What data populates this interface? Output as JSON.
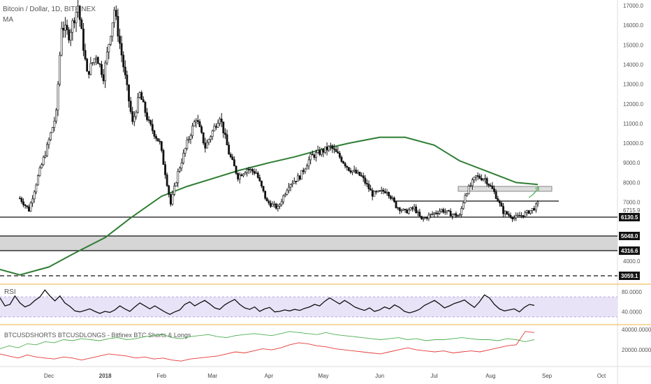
{
  "header": {
    "title": "Bitcoin / Dollar, 1D, BITFINEX",
    "indicator": "MA"
  },
  "rsi_panel": {
    "label": "RSI"
  },
  "shorts_panel": {
    "label": "BTCUSDSHORTS BTCUSDLONGS - Bitfinex BTC Shorts & Longs"
  },
  "colors": {
    "ma": "#2e7d32",
    "price": "#111111",
    "rsi": "#111111",
    "rsi_band": "#e9e3f8",
    "panel_border": "#f2b341",
    "longs": "#4caf50",
    "shorts": "#e53935",
    "arrow": "#4caf50",
    "zone": "#cccccc"
  },
  "chart_data": [
    {
      "type": "candlestick",
      "title": "Bitcoin / Dollar, 1D, BITFINEX",
      "x_ticks": [
        "Dec",
        "2018",
        "Feb",
        "Mar",
        "Apr",
        "May",
        "Jun",
        "Jul",
        "Aug",
        "Sep",
        "Oct"
      ],
      "y_ticks": [
        "17000.0",
        "16000.0",
        "15000.0",
        "14000.0",
        "13000.0",
        "12000.0",
        "11000.0",
        "10000.0",
        "9000.0",
        "8000.0",
        "7000.0",
        "4000.0"
      ],
      "ylim": [
        2500,
        17500
      ],
      "price_path": [
        [
          "Nov 15",
          7200
        ],
        [
          "Nov 20",
          6600
        ],
        [
          "Nov 25",
          8300
        ],
        [
          "Nov 30",
          9800
        ],
        [
          "Dec 5",
          11500
        ],
        [
          "Dec 8",
          16000
        ],
        [
          "Dec 12",
          15500
        ],
        [
          "Dec 17",
          17000
        ],
        [
          "Dec 22",
          13500
        ],
        [
          "Dec 27",
          14500
        ],
        [
          "Dec 31",
          13400
        ],
        [
          "Jan 6",
          16800
        ],
        [
          "Jan 10",
          14500
        ],
        [
          "Jan 16",
          11000
        ],
        [
          "Jan 20",
          12500
        ],
        [
          "Jan 25",
          11000
        ],
        [
          "Jan 31",
          10000
        ],
        [
          "Feb 3",
          8500
        ],
        [
          "Feb 6",
          6900
        ],
        [
          "Feb 10",
          8500
        ],
        [
          "Feb 15",
          10000
        ],
        [
          "Feb 20",
          11300
        ],
        [
          "Feb 25",
          9800
        ],
        [
          "Mar 5",
          11400
        ],
        [
          "Mar 10",
          9500
        ],
        [
          "Mar 15",
          8300
        ],
        [
          "Mar 20",
          8700
        ],
        [
          "Mar 25",
          8500
        ],
        [
          "Mar 31",
          7000
        ],
        [
          "Apr 6",
          6700
        ],
        [
          "Apr 12",
          7900
        ],
        [
          "Apr 18",
          8300
        ],
        [
          "Apr 24",
          9300
        ],
        [
          "May 5",
          9800
        ],
        [
          "May 10",
          9300
        ],
        [
          "May 15",
          8700
        ],
        [
          "May 22",
          8300
        ],
        [
          "May 28",
          7400
        ],
        [
          "Jun 5",
          7600
        ],
        [
          "Jun 10",
          6800
        ],
        [
          "Jun 15",
          6500
        ],
        [
          "Jun 20",
          6700
        ],
        [
          "Jun 24",
          6100
        ],
        [
          "Jun 30",
          6400
        ],
        [
          "Jul 5",
          6600
        ],
        [
          "Jul 10",
          6400
        ],
        [
          "Jul 15",
          6300
        ],
        [
          "Jul 18",
          7400
        ],
        [
          "Jul 24",
          8300
        ],
        [
          "Jul 29",
          8200
        ],
        [
          "Aug 3",
          7500
        ],
        [
          "Aug 8",
          6500
        ],
        [
          "Aug 14",
          6200
        ],
        [
          "Aug 20",
          6400
        ],
        [
          "Aug 25",
          6700
        ],
        [
          "Aug 27",
          6900
        ]
      ],
      "ma_path": [
        [
          "Nov 15",
          3300
        ],
        [
          "Dec 1",
          3700
        ],
        [
          "Dec 15",
          4400
        ],
        [
          "Jan 1",
          5200
        ],
        [
          "Jan 15",
          6200
        ],
        [
          "Feb 1",
          7300
        ],
        [
          "Feb 15",
          7800
        ],
        [
          "Mar 1",
          8200
        ],
        [
          "Mar 15",
          8600
        ],
        [
          "Apr 1",
          9000
        ],
        [
          "Apr 15",
          9300
        ],
        [
          "May 1",
          9700
        ],
        [
          "May 15",
          10000
        ],
        [
          "Jun 1",
          10300
        ],
        [
          "Jun 15",
          10300
        ],
        [
          "Jul 1",
          9900
        ],
        [
          "Jul 15",
          9100
        ],
        [
          "Aug 1",
          8500
        ],
        [
          "Aug 15",
          8000
        ],
        [
          "Aug 27",
          7900
        ]
      ],
      "levels": [
        {
          "label": "6130.5",
          "value": 6130.5,
          "style": "solid"
        },
        {
          "label": "5048.0",
          "value": 5048.0,
          "style": "solid"
        },
        {
          "label": "4316.6",
          "value": 4316.6,
          "style": "solid"
        },
        {
          "label": "3059.1",
          "value": 3059.1,
          "style": "dashed"
        }
      ],
      "support_zone": [
        4316.6,
        5048.0
      ],
      "resistance_line": 6900,
      "resistance_zone": [
        7400,
        7700
      ],
      "current_price": "6715.9"
    },
    {
      "type": "line",
      "title": "RSI",
      "y_ticks": [
        "80.0000",
        "40.0000"
      ],
      "band": [
        30,
        70
      ],
      "ylim": [
        20,
        90
      ],
      "series": [
        {
          "values": [
            68,
            52,
            55,
            72,
            58,
            50,
            54,
            63,
            70,
            84,
            72,
            62,
            72,
            58,
            51,
            42,
            40,
            43,
            46,
            41,
            37,
            41,
            39,
            44,
            52,
            46,
            41,
            50,
            58,
            52,
            46,
            52,
            46,
            40,
            35,
            40,
            44,
            55,
            60,
            52,
            58,
            63,
            56,
            48,
            45,
            54,
            60,
            65,
            55,
            48,
            45,
            50,
            41,
            46,
            49,
            40,
            41,
            44,
            42,
            45,
            43,
            47,
            50,
            55,
            52,
            61,
            68,
            62,
            56,
            63,
            57,
            50,
            46,
            43,
            48,
            41,
            44,
            50,
            46,
            54,
            49,
            41,
            38,
            41,
            45,
            53,
            58,
            63,
            56,
            48,
            52,
            57,
            60,
            64,
            56,
            49,
            60,
            74,
            68,
            55,
            46,
            42,
            44,
            46,
            40,
            49,
            55,
            53
          ]
        }
      ]
    },
    {
      "type": "line",
      "title": "BTCUSDSHORTS BTCUSDLONGS - Bitfinex BTC Shorts & Longs",
      "y_ticks": [
        "40000.0000",
        "20000.0000"
      ],
      "ylim": [
        5000,
        42000
      ],
      "series": [
        {
          "values": [
            21000,
            24000,
            22000,
            26000,
            25000,
            28000,
            27000,
            30000,
            29000,
            31000,
            30000,
            29000,
            31000,
            32000,
            30000,
            31000,
            33000,
            34000,
            35000,
            32000,
            31000,
            33000,
            34000,
            35000,
            33000,
            32000,
            34000,
            35000,
            36000,
            35000,
            34000,
            36000,
            38000,
            37000,
            36000,
            35000,
            37000,
            35000,
            34000,
            33000,
            32000,
            31000,
            30000,
            31000,
            32000,
            30000,
            31000,
            29000,
            30000,
            30000,
            31000,
            32000,
            31000,
            30000,
            30000,
            29000,
            31000,
            30000,
            28000,
            30000
          ]
        },
        {
          "values": [
            16000,
            14000,
            12000,
            15000,
            13000,
            12000,
            11000,
            13000,
            12000,
            10000,
            12000,
            14000,
            16000,
            15000,
            14000,
            12000,
            13000,
            11000,
            12000,
            10000,
            9000,
            11000,
            12000,
            13000,
            14000,
            16000,
            18000,
            17000,
            19000,
            21000,
            20000,
            22000,
            25000,
            27000,
            26000,
            24000,
            23000,
            21000,
            20000,
            19000,
            18000,
            17000,
            16000,
            18000,
            20000,
            22000,
            20000,
            19000,
            18000,
            19000,
            17000,
            18000,
            19000,
            18000,
            20000,
            22000,
            24000,
            25000,
            38000,
            37000
          ]
        }
      ]
    }
  ]
}
